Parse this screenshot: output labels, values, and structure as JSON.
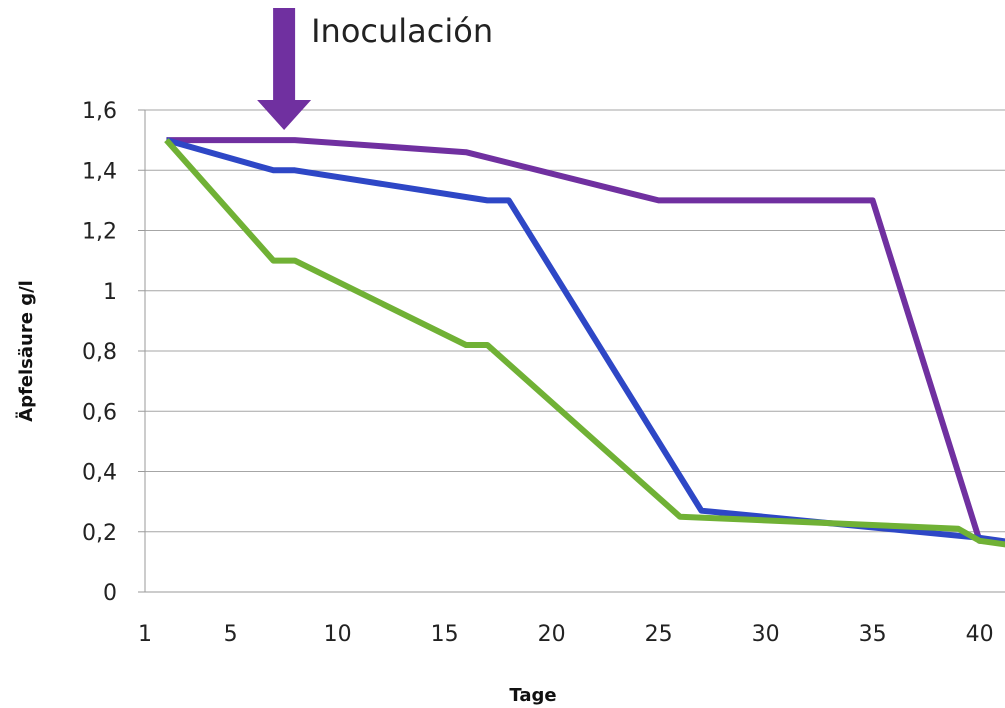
{
  "chart_data": {
    "type": "line",
    "xlabel": "Tage",
    "ylabel": "Äpfelsäure g/l",
    "xlim": [
      1,
      42
    ],
    "ylim": [
      0,
      1.6
    ],
    "x_ticks": [
      1,
      5,
      10,
      15,
      20,
      25,
      30,
      35,
      40
    ],
    "x_tick_labels": [
      "1",
      "5",
      "10",
      "15",
      "20",
      "25",
      "30",
      "35",
      "40"
    ],
    "y_ticks": [
      0,
      0.2,
      0.4,
      0.6,
      0.8,
      1.0,
      1.2,
      1.4,
      1.6
    ],
    "y_tick_labels": [
      "0",
      "0,2",
      "0,4",
      "0,6",
      "0,8",
      "1",
      "1,2",
      "1,4",
      "1,6"
    ],
    "grid": true,
    "annotation": {
      "text": "Inoculación",
      "x": 7.5,
      "marker": "arrow-down"
    },
    "series": [
      {
        "color": "#7030a0",
        "x": [
          2,
          8,
          16,
          25,
          35,
          40,
          42
        ],
        "y": [
          1.5,
          1.5,
          1.46,
          1.3,
          1.3,
          0.17,
          0.16
        ]
      },
      {
        "color": "#2e47c6",
        "x": [
          2,
          7,
          8,
          17,
          18,
          27,
          40,
          42
        ],
        "y": [
          1.5,
          1.4,
          1.4,
          1.3,
          1.3,
          0.27,
          0.18,
          0.16
        ]
      },
      {
        "color": "#70b135",
        "x": [
          2,
          7,
          8,
          16,
          17,
          26,
          39,
          40,
          42
        ],
        "y": [
          1.5,
          1.1,
          1.1,
          0.82,
          0.82,
          0.25,
          0.21,
          0.17,
          0.15
        ]
      }
    ]
  }
}
